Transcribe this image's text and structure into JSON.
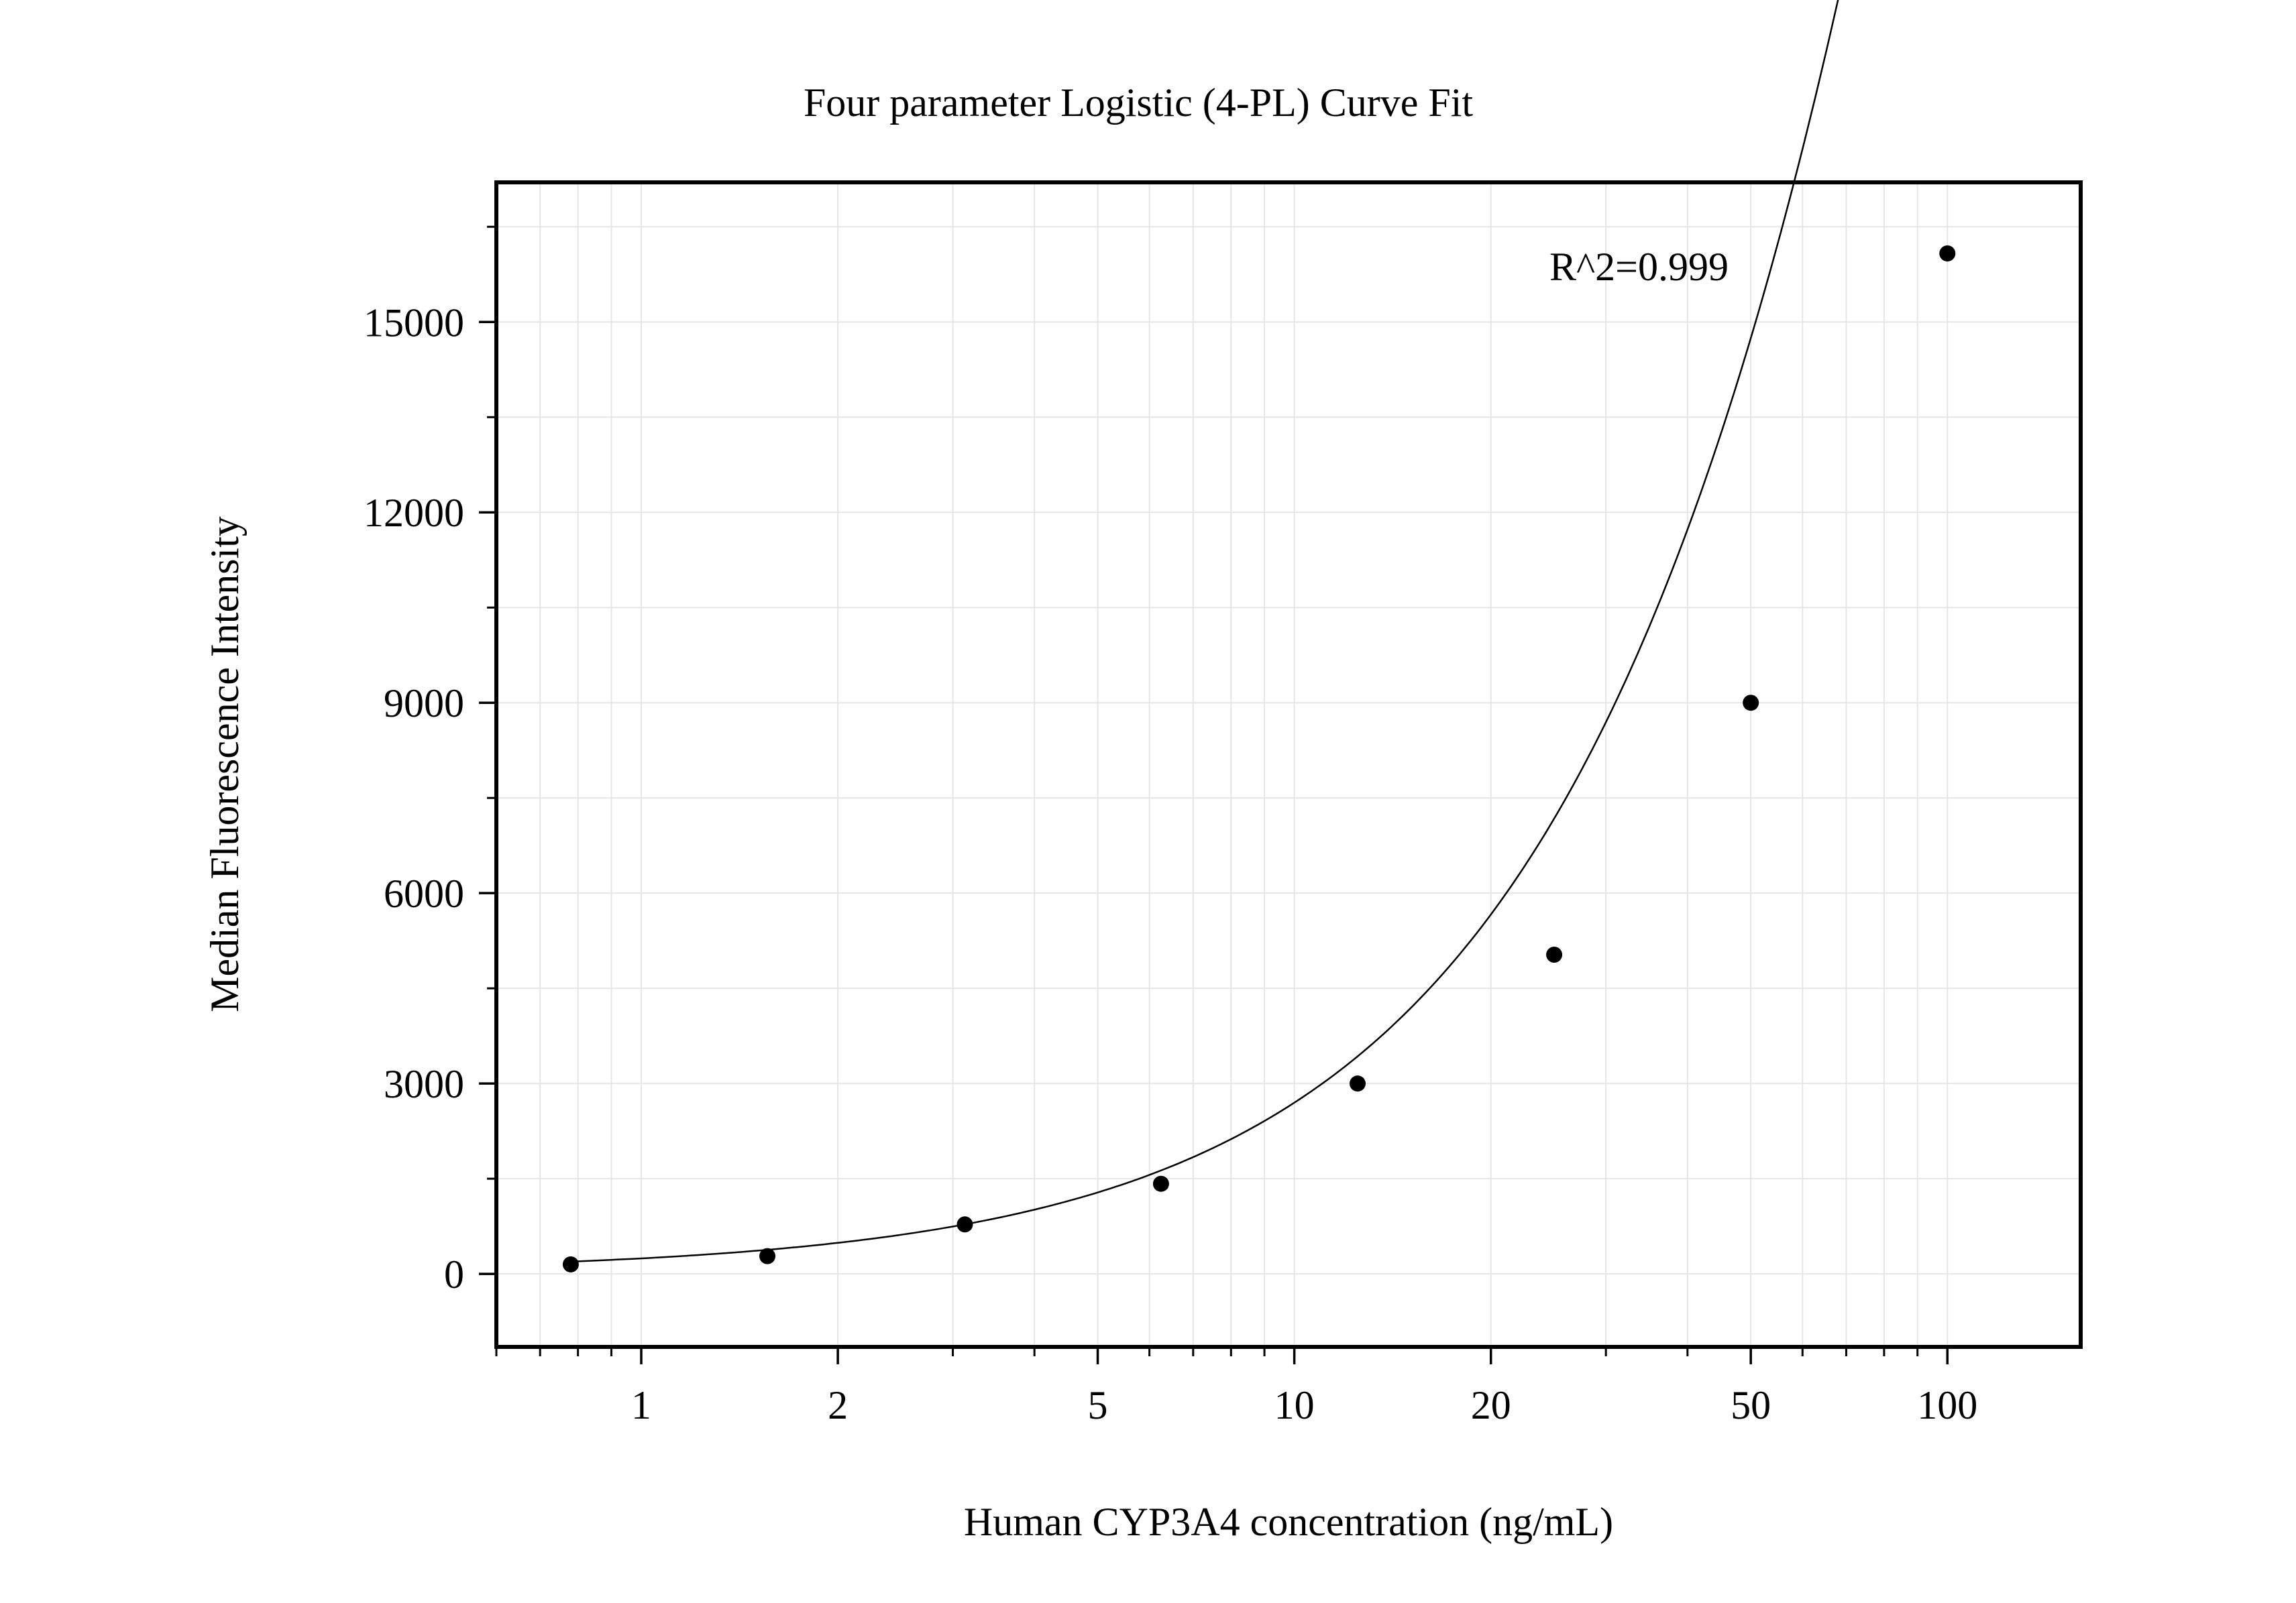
{
  "chart_data": {
    "type": "scatter",
    "title": "Four parameter Logistic (4-PL) Curve Fit",
    "xlabel": "Human CYP3A4 concentration (ng/mL)",
    "ylabel": "Median Fluorescence Intensity",
    "annotation": "R^2=0.999",
    "x_scale": "log",
    "xlim": [
      0.6,
      160
    ],
    "ylim": [
      -1150,
      17200
    ],
    "x_ticks": [
      {
        "value": 1,
        "label": "1"
      },
      {
        "value": 2,
        "label": "2"
      },
      {
        "value": 5,
        "label": "5"
      },
      {
        "value": 10,
        "label": "10"
      },
      {
        "value": 20,
        "label": "20"
      },
      {
        "value": 50,
        "label": "50"
      },
      {
        "value": 100,
        "label": "100"
      }
    ],
    "y_ticks": [
      {
        "value": 0,
        "label": "0"
      },
      {
        "value": 3000,
        "label": "3000"
      },
      {
        "value": 6000,
        "label": "6000"
      },
      {
        "value": 9000,
        "label": "9000"
      },
      {
        "value": 12000,
        "label": "12000"
      },
      {
        "value": 15000,
        "label": "15000"
      }
    ],
    "grid": true,
    "points": [
      {
        "x": 0.78,
        "y": 150
      },
      {
        "x": 1.56,
        "y": 280
      },
      {
        "x": 3.13,
        "y": 780
      },
      {
        "x": 6.25,
        "y": 1420
      },
      {
        "x": 12.5,
        "y": 3000
      },
      {
        "x": 25,
        "y": 5030
      },
      {
        "x": 50,
        "y": 9000
      },
      {
        "x": 100,
        "y": 16080
      }
    ],
    "fit_curve": {
      "model": "4PL",
      "A": 30,
      "B": 1.1,
      "C": 500,
      "D": 200000
    },
    "colors": {
      "points": "#000000",
      "curve": "#000000",
      "grid": "#e6e6e6",
      "frame": "#000000"
    }
  }
}
